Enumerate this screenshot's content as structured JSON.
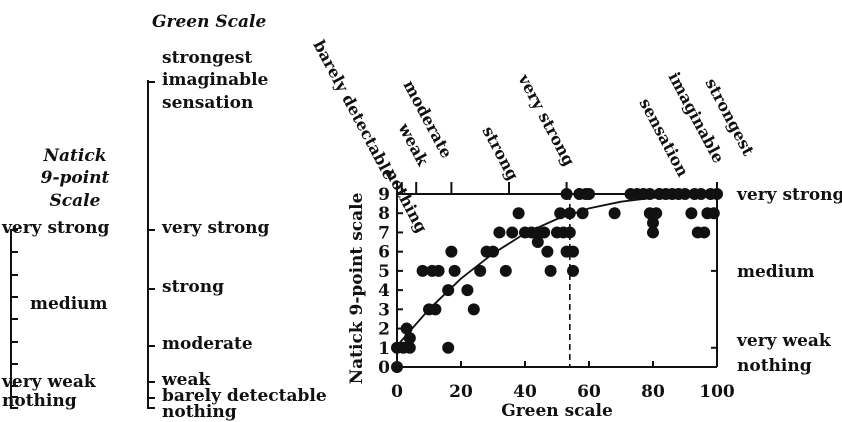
{
  "green_panel": {
    "title": "Green Scale",
    "labels": [
      "strongest",
      "imaginable",
      "sensation",
      "very strong",
      "strong",
      "moderate",
      "weak",
      "barely detectable",
      "nothing"
    ]
  },
  "natick_panel": {
    "title_lines": [
      "Natick",
      "9-point",
      "Scale"
    ],
    "labels": [
      "very strong",
      "medium",
      "very weak",
      "nothing"
    ]
  },
  "chart_data": {
    "type": "scatter",
    "xlabel": "Green scale",
    "ylabel": "Natick 9-point scale",
    "xlim": [
      0,
      100
    ],
    "ylim": [
      0,
      9
    ],
    "x_ticks": [
      0,
      20,
      40,
      60,
      80,
      100
    ],
    "y_ticks": [
      0,
      1,
      2,
      3,
      4,
      5,
      6,
      7,
      8,
      9
    ],
    "right_axis_labels": [
      {
        "value": 9,
        "label": "very strong"
      },
      {
        "value": 5,
        "label": "medium"
      },
      {
        "value": 1,
        "label": "very weak"
      },
      {
        "value": 0,
        "label": "nothing"
      }
    ],
    "top_axis_labels": [
      {
        "value": 0,
        "label": "nothing"
      },
      {
        "value": 1.5,
        "label": "barely detectable"
      },
      {
        "value": 6,
        "label": "weak"
      },
      {
        "value": 17,
        "label": "moderate"
      },
      {
        "value": 35,
        "label": "strong"
      },
      {
        "value": 53,
        "label": "very strong"
      },
      {
        "value": 100,
        "label": "strongest imaginable sensation"
      }
    ],
    "top_label_lines": {
      "strongest": [
        "strongest",
        "imaginable",
        "sensation"
      ]
    },
    "reference_x": 54,
    "points": [
      [
        0,
        0
      ],
      [
        0,
        1
      ],
      [
        2,
        1
      ],
      [
        4,
        1
      ],
      [
        3,
        2
      ],
      [
        4,
        1.5
      ],
      [
        8,
        5
      ],
      [
        10,
        3
      ],
      [
        11,
        5
      ],
      [
        12,
        3
      ],
      [
        13,
        5
      ],
      [
        16,
        1
      ],
      [
        16,
        4
      ],
      [
        17,
        6
      ],
      [
        18,
        5
      ],
      [
        22,
        4
      ],
      [
        24,
        3
      ],
      [
        26,
        5
      ],
      [
        28,
        6
      ],
      [
        30,
        6
      ],
      [
        32,
        7
      ],
      [
        34,
        5
      ],
      [
        36,
        7
      ],
      [
        38,
        8
      ],
      [
        40,
        7
      ],
      [
        42,
        7
      ],
      [
        44,
        6.5
      ],
      [
        44,
        7
      ],
      [
        46,
        7
      ],
      [
        47,
        6
      ],
      [
        48,
        5
      ],
      [
        50,
        7
      ],
      [
        51,
        8
      ],
      [
        52,
        7
      ],
      [
        53,
        9
      ],
      [
        53,
        6
      ],
      [
        54,
        8
      ],
      [
        54,
        7
      ],
      [
        55,
        5
      ],
      [
        55,
        6
      ],
      [
        57,
        9
      ],
      [
        58,
        8
      ],
      [
        59,
        9
      ],
      [
        60,
        9
      ],
      [
        68,
        8
      ],
      [
        73,
        9
      ],
      [
        75,
        9
      ],
      [
        77,
        9
      ],
      [
        79,
        8
      ],
      [
        79,
        9
      ],
      [
        80,
        7
      ],
      [
        80,
        7.5
      ],
      [
        81,
        8
      ],
      [
        82,
        9
      ],
      [
        84,
        9
      ],
      [
        86,
        9
      ],
      [
        88,
        9
      ],
      [
        90,
        9
      ],
      [
        92,
        8
      ],
      [
        93,
        9
      ],
      [
        94,
        7
      ],
      [
        95,
        9
      ],
      [
        96,
        7
      ],
      [
        97,
        8
      ],
      [
        98,
        9
      ],
      [
        99,
        8
      ],
      [
        100,
        9
      ]
    ],
    "fit_curve": [
      [
        0,
        1.1
      ],
      [
        10,
        3.0
      ],
      [
        20,
        4.6
      ],
      [
        30,
        5.9
      ],
      [
        40,
        6.95
      ],
      [
        50,
        7.7
      ],
      [
        60,
        8.25
      ],
      [
        70,
        8.6
      ],
      [
        80,
        8.8
      ],
      [
        90,
        8.9
      ],
      [
        100,
        8.95
      ]
    ]
  }
}
